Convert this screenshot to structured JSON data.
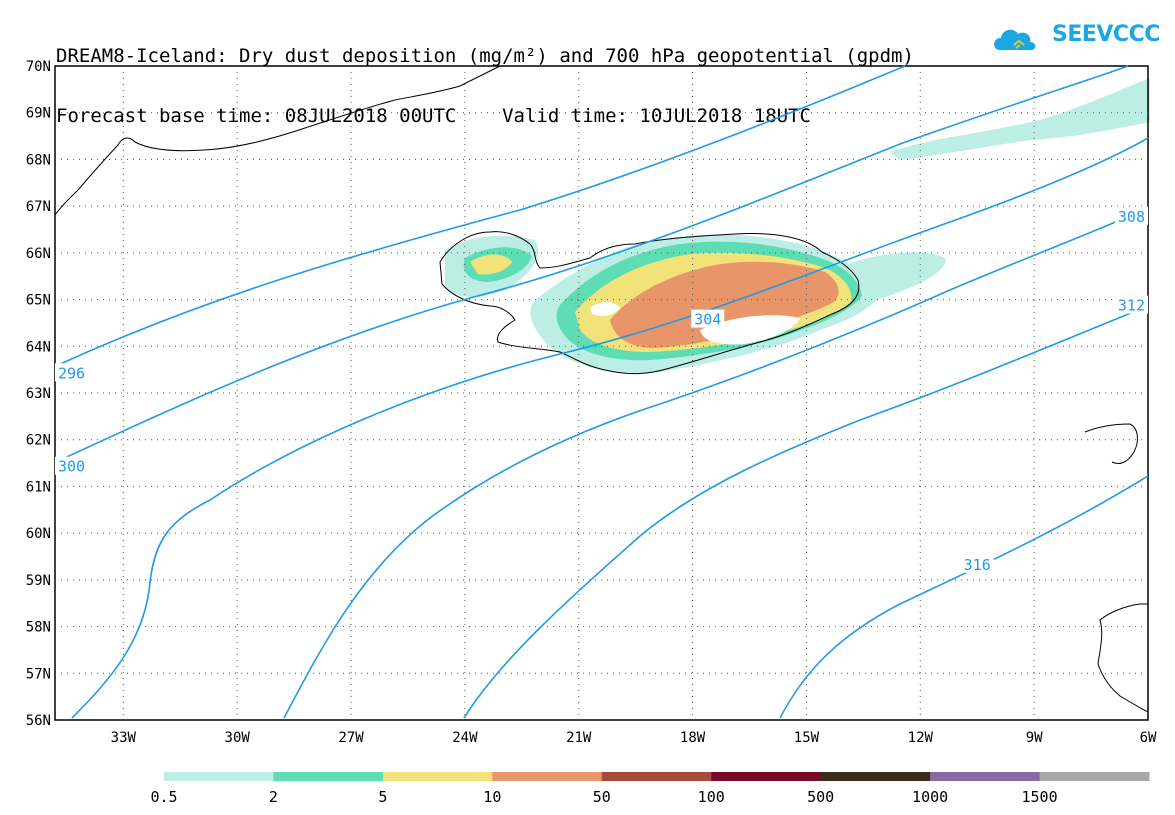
{
  "title": {
    "line1": "DREAM8-Iceland: Dry dust deposition (mg/m²) and 700 hPa geopotential (gpdm)",
    "line2": "Forecast base time: 08JUL2018 00UTC    Valid time: 10JUL2018 18UTC"
  },
  "logo": {
    "text": "SEEVCCC",
    "icon": "cloud-logo-icon",
    "color": "#1ba6e6"
  },
  "map": {
    "lon_range": [
      -34.8,
      -6
    ],
    "lat_range": [
      56,
      70
    ],
    "lat_ticks": [
      "56N",
      "57N",
      "58N",
      "59N",
      "60N",
      "61N",
      "62N",
      "63N",
      "64N",
      "65N",
      "66N",
      "67N",
      "68N",
      "69N",
      "70N"
    ],
    "lon_ticks": [
      "33W",
      "30W",
      "27W",
      "24W",
      "21W",
      "18W",
      "15W",
      "12W",
      "9W",
      "6W"
    ],
    "gridlines": "dotted",
    "contour_color": "#1f9be6",
    "contour_labels": [
      {
        "text": "296",
        "lon": -34.5,
        "lat": 63.4
      },
      {
        "text": "300",
        "lon": -34.6,
        "lat": 61.4
      },
      {
        "text": "304",
        "lon": -17.6,
        "lat": 64.55
      },
      {
        "text": "308",
        "lon": -6.2,
        "lat": 66.75
      },
      {
        "text": "312",
        "lon": -6.2,
        "lat": 64.85
      },
      {
        "text": "316",
        "lon": -10.5,
        "lat": 59.3
      }
    ]
  },
  "legend": {
    "colors": [
      "#bdeee6",
      "#5edcb4",
      "#f2e27a",
      "#e8956a",
      "#a84a3c",
      "#7a0a2a",
      "#3a2a1a",
      "#8a6aa2",
      "#a8a8a8"
    ],
    "labels": [
      "0.5",
      "2",
      "5",
      "10",
      "50",
      "100",
      "500",
      "1000",
      "1500"
    ]
  }
}
